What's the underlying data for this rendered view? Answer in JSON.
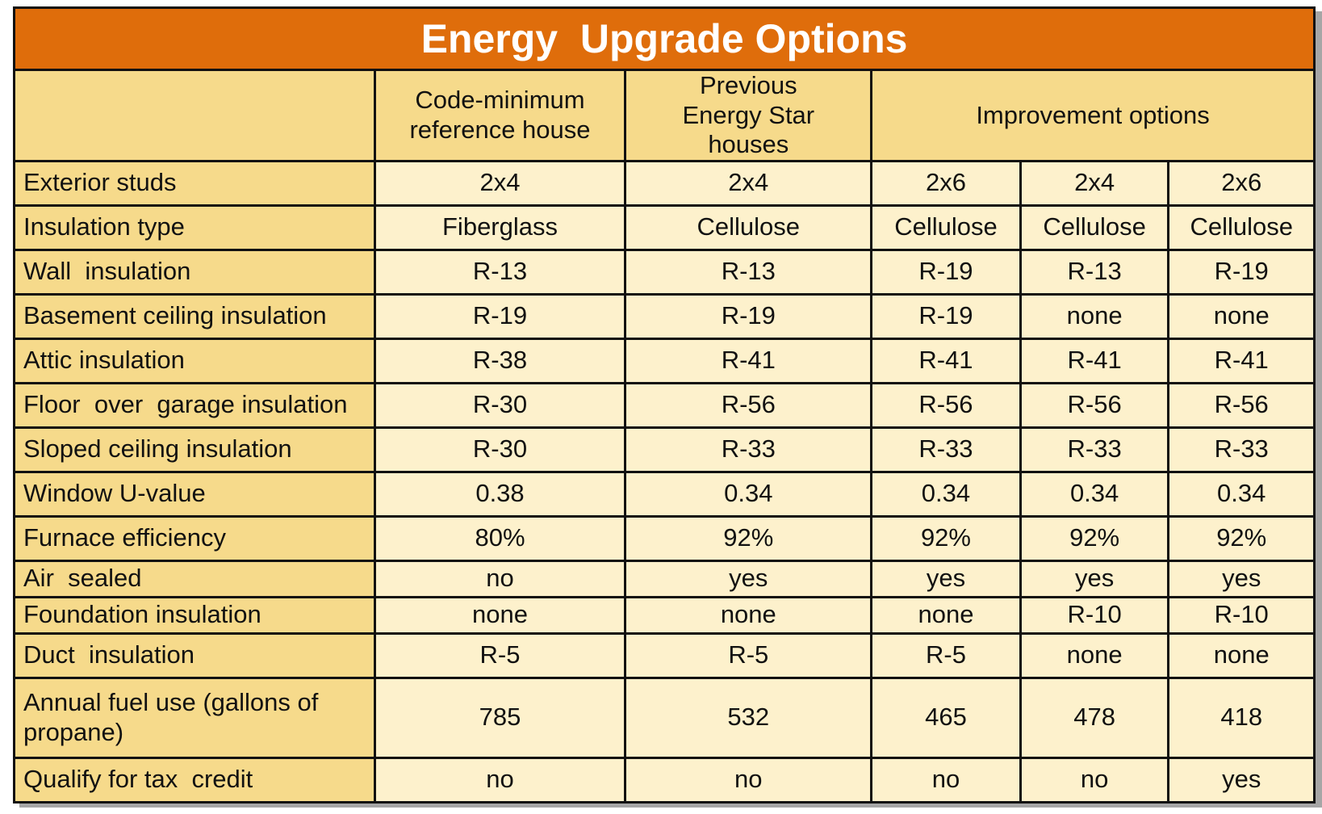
{
  "title": "Energy  Upgrade Options",
  "headers": {
    "code_minimum": "Code-minimum reference house",
    "previous_energy_star": "Previous Energy Star  houses",
    "improvement_options": "Improvement options"
  },
  "rows": [
    {
      "label": "Exterior studs",
      "values": [
        "2x4",
        "2x4",
        "2x6",
        "2x4",
        "2x6"
      ]
    },
    {
      "label": "Insulation type",
      "values": [
        "Fiberglass",
        "Cellulose",
        "Cellulose",
        "Cellulose",
        "Cellulose"
      ]
    },
    {
      "label": "Wall  insulation",
      "values": [
        "R-13",
        "R-13",
        "R-19",
        "R-13",
        "R-19"
      ]
    },
    {
      "label": "Basement ceiling insulation",
      "values": [
        "R-19",
        "R-19",
        "R-19",
        "none",
        "none"
      ]
    },
    {
      "label": "Attic insulation",
      "values": [
        "R-38",
        "R-41",
        "R-41",
        "R-41",
        "R-41"
      ]
    },
    {
      "label": "Floor  over  garage insulation",
      "values": [
        "R-30",
        "R-56",
        "R-56",
        "R-56",
        "R-56"
      ]
    },
    {
      "label": "Sloped ceiling insulation",
      "values": [
        "R-30",
        "R-33",
        "R-33",
        "R-33",
        "R-33"
      ]
    },
    {
      "label": "Window U-value",
      "values": [
        "0.38",
        "0.34",
        "0.34",
        "0.34",
        "0.34"
      ]
    },
    {
      "label": "Furnace efficiency",
      "values": [
        "80%",
        "92%",
        "92%",
        "92%",
        "92%"
      ]
    },
    {
      "label": "Air  sealed",
      "values": [
        "no",
        "yes",
        "yes",
        "yes",
        "yes"
      ]
    },
    {
      "label": "Foundation insulation",
      "values": [
        "none",
        "none",
        "none",
        "R-10",
        "R-10"
      ]
    },
    {
      "label": "Duct  insulation",
      "values": [
        "R-5",
        "R-5",
        "R-5",
        "none",
        "none"
      ]
    },
    {
      "label": "Annual fuel  use (gallons of  propane)",
      "values": [
        "785",
        "532",
        "465",
        "478",
        "418"
      ]
    },
    {
      "label": "Qualify for tax  credit",
      "values": [
        "no",
        "no",
        "no",
        "no",
        "yes"
      ]
    }
  ]
}
